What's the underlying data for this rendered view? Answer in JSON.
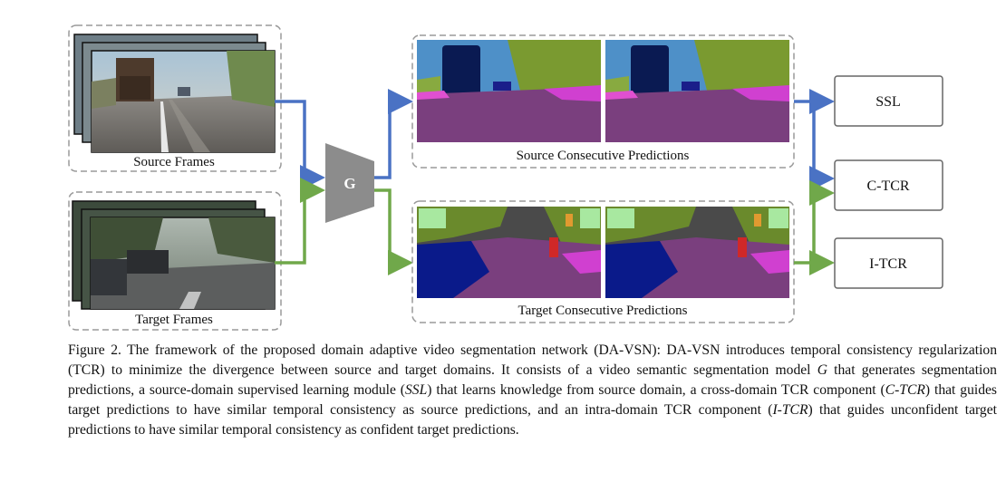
{
  "diagram": {
    "source_frames_label": "Source Frames",
    "target_frames_label": "Target Frames",
    "model_label": "G",
    "source_predictions_label": "Source Consecutive Predictions",
    "target_predictions_label": "Target Consecutive Predictions",
    "output_boxes": [
      "SSL",
      "C-TCR",
      "I-TCR"
    ],
    "colors": {
      "source_arrow": "#4a72c4",
      "target_arrow": "#70a84a",
      "model_fill": "#8c8c8c",
      "dashed_border": "#9a9a9a"
    }
  },
  "caption": {
    "lead": "Figure 2. The framework of the proposed domain adaptive video segmentation network (DA-VSN): DA-VSN introduces temporal consistency regularization (TCR) to minimize the divergence between source and target domains. It consists of a video semantic segmentation model ",
    "g": "G",
    "t1": " that generates segmentation predictions, a source-domain supervised learning module (",
    "ssl": "SSL",
    "t2": ") that learns knowledge from source domain, a cross-domain TCR component (",
    "ctcr": "C-TCR",
    "t3": ") that guides target predictions to have similar temporal consistency as source predictions, and an intra-domain TCR component (",
    "itcr": "I-TCR",
    "t4": ") that guides unconfident target predictions to have similar temporal consistency as confident target predictions."
  }
}
